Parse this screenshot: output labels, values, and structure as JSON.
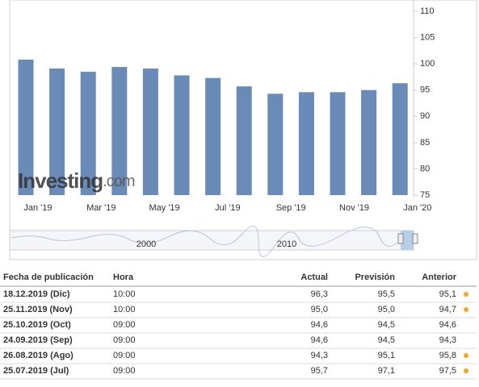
{
  "chart_data": {
    "type": "bar",
    "color": "#6a8ab7",
    "values": [
      100.8,
      99.1,
      98.5,
      99.4,
      99.1,
      97.8,
      97.3,
      95.7,
      94.3,
      94.6,
      94.6,
      95.0,
      96.3
    ],
    "x_labels": [
      "Jan '19",
      "Mar '19",
      "May '19",
      "Jul '19",
      "Sep '19",
      "Nov '19",
      "Jan '20"
    ],
    "ylim": [
      75,
      110
    ],
    "yticks": [
      75,
      80,
      85,
      90,
      95,
      100,
      105,
      110
    ],
    "watermark": "Investing",
    "watermark_suffix": ".com",
    "navigator_labels": [
      "2000",
      "2010"
    ]
  },
  "table": {
    "headers": [
      "Fecha de publicación",
      "Hora",
      "Actual",
      "Previsión",
      "Anterior"
    ],
    "rows": [
      [
        "18.12.2019 (Dic)",
        "10:00",
        "96,3",
        "95,5",
        "95,1"
      ],
      [
        "25.11.2019 (Nov)",
        "10:00",
        "95,0",
        "95,0",
        "94,7"
      ],
      [
        "25.10.2019 (Oct)",
        "09:00",
        "94,6",
        "94,5",
        "94,6"
      ],
      [
        "24.09.2019 (Sep)",
        "09:00",
        "94,6",
        "94,5",
        "94,3"
      ],
      [
        "26.08.2019 (Ago)",
        "09:00",
        "94,3",
        "95,1",
        "95,8"
      ],
      [
        "25.07.2019 (Jul)",
        "09:00",
        "95,7",
        "97,1",
        "97,5"
      ]
    ],
    "actual_colors": [
      "#2a9a2a",
      "#333333",
      "#2a9a2a",
      "#2a9a2a",
      "#d0021b",
      "#d0021b"
    ],
    "anterior_colors": [
      "#2a9a2a",
      "#2a9a2a",
      "#333333",
      "#333333",
      "#2a9a2a",
      "#2a9a2a"
    ],
    "revised_dot": [
      true,
      true,
      false,
      false,
      true,
      true
    ],
    "dot_color": "#f5a623"
  }
}
